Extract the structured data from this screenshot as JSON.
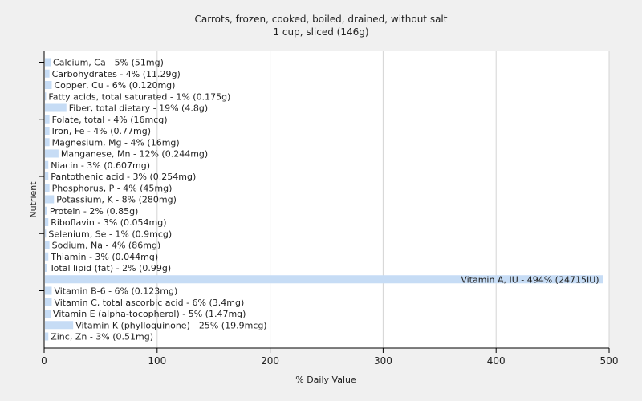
{
  "chart_data": {
    "type": "bar",
    "orientation": "horizontal",
    "title": "Carrots, frozen, cooked, boiled, drained, without salt",
    "subtitle": "1 cup, sliced (146g)",
    "xlabel": "% Daily Value",
    "ylabel": "Nutrient",
    "xlim": [
      0,
      500
    ],
    "xticks": [
      0,
      100,
      200,
      300,
      400,
      500
    ],
    "grid": "vertical",
    "bar_color": "#c6dcf5",
    "categories": [
      "Calcium, Ca - 5% (51mg)",
      "Carbohydrates - 4% (11.29g)",
      "Copper, Cu - 6% (0.120mg)",
      "Fatty acids, total saturated - 1% (0.175g)",
      "Fiber, total dietary - 19% (4.8g)",
      "Folate, total - 4% (16mcg)",
      "Iron, Fe - 4% (0.77mg)",
      "Magnesium, Mg - 4% (16mg)",
      "Manganese, Mn - 12% (0.244mg)",
      "Niacin - 3% (0.607mg)",
      "Pantothenic acid - 3% (0.254mg)",
      "Phosphorus, P - 4% (45mg)",
      "Potassium, K - 8% (280mg)",
      "Protein - 2% (0.85g)",
      "Riboflavin - 3% (0.054mg)",
      "Selenium, Se - 1% (0.9mcg)",
      "Sodium, Na - 4% (86mg)",
      "Thiamin - 3% (0.044mg)",
      "Total lipid (fat) - 2% (0.99g)",
      "Vitamin A, IU - 494% (24715IU)",
      "Vitamin B-6 - 6% (0.123mg)",
      "Vitamin C, total ascorbic acid - 6% (3.4mg)",
      "Vitamin E (alpha-tocopherol) - 5% (1.47mg)",
      "Vitamin K (phylloquinone) - 25% (19.9mcg)",
      "Zinc, Zn - 3% (0.51mg)"
    ],
    "values": [
      5,
      4,
      6,
      1,
      19,
      4,
      4,
      4,
      12,
      3,
      3,
      4,
      8,
      2,
      3,
      1,
      4,
      3,
      2,
      494,
      6,
      6,
      5,
      25,
      3
    ]
  }
}
